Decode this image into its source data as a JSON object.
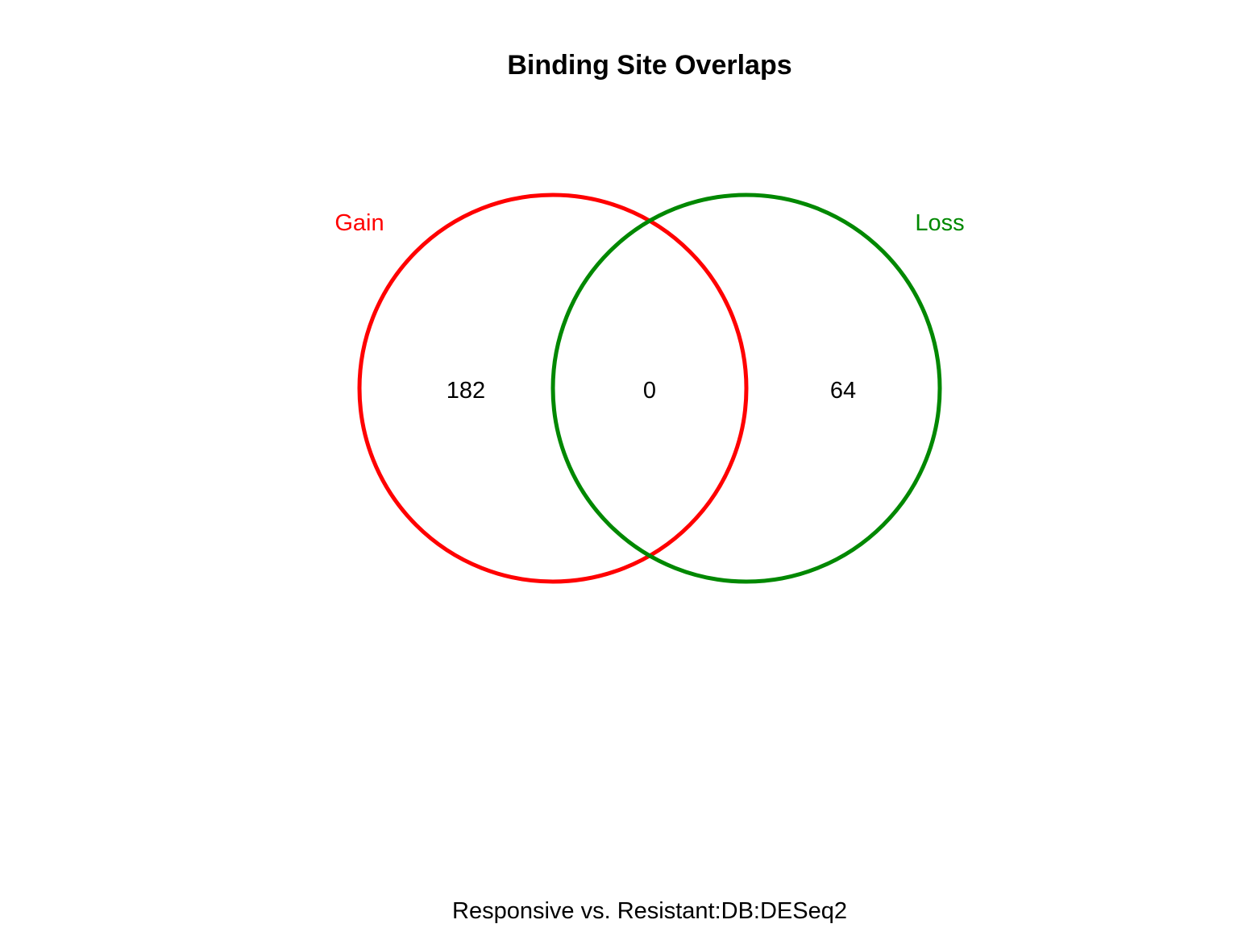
{
  "diagram": {
    "title": "Binding Site Overlaps",
    "subtitle": "Responsive vs. Resistant:DB:DESeq2",
    "sets": [
      {
        "label": "Gain",
        "color": "#ff0000"
      },
      {
        "label": "Loss",
        "color": "#008800"
      }
    ],
    "regions": {
      "gain_only": "182",
      "overlap": "0",
      "loss_only": "64"
    }
  }
}
